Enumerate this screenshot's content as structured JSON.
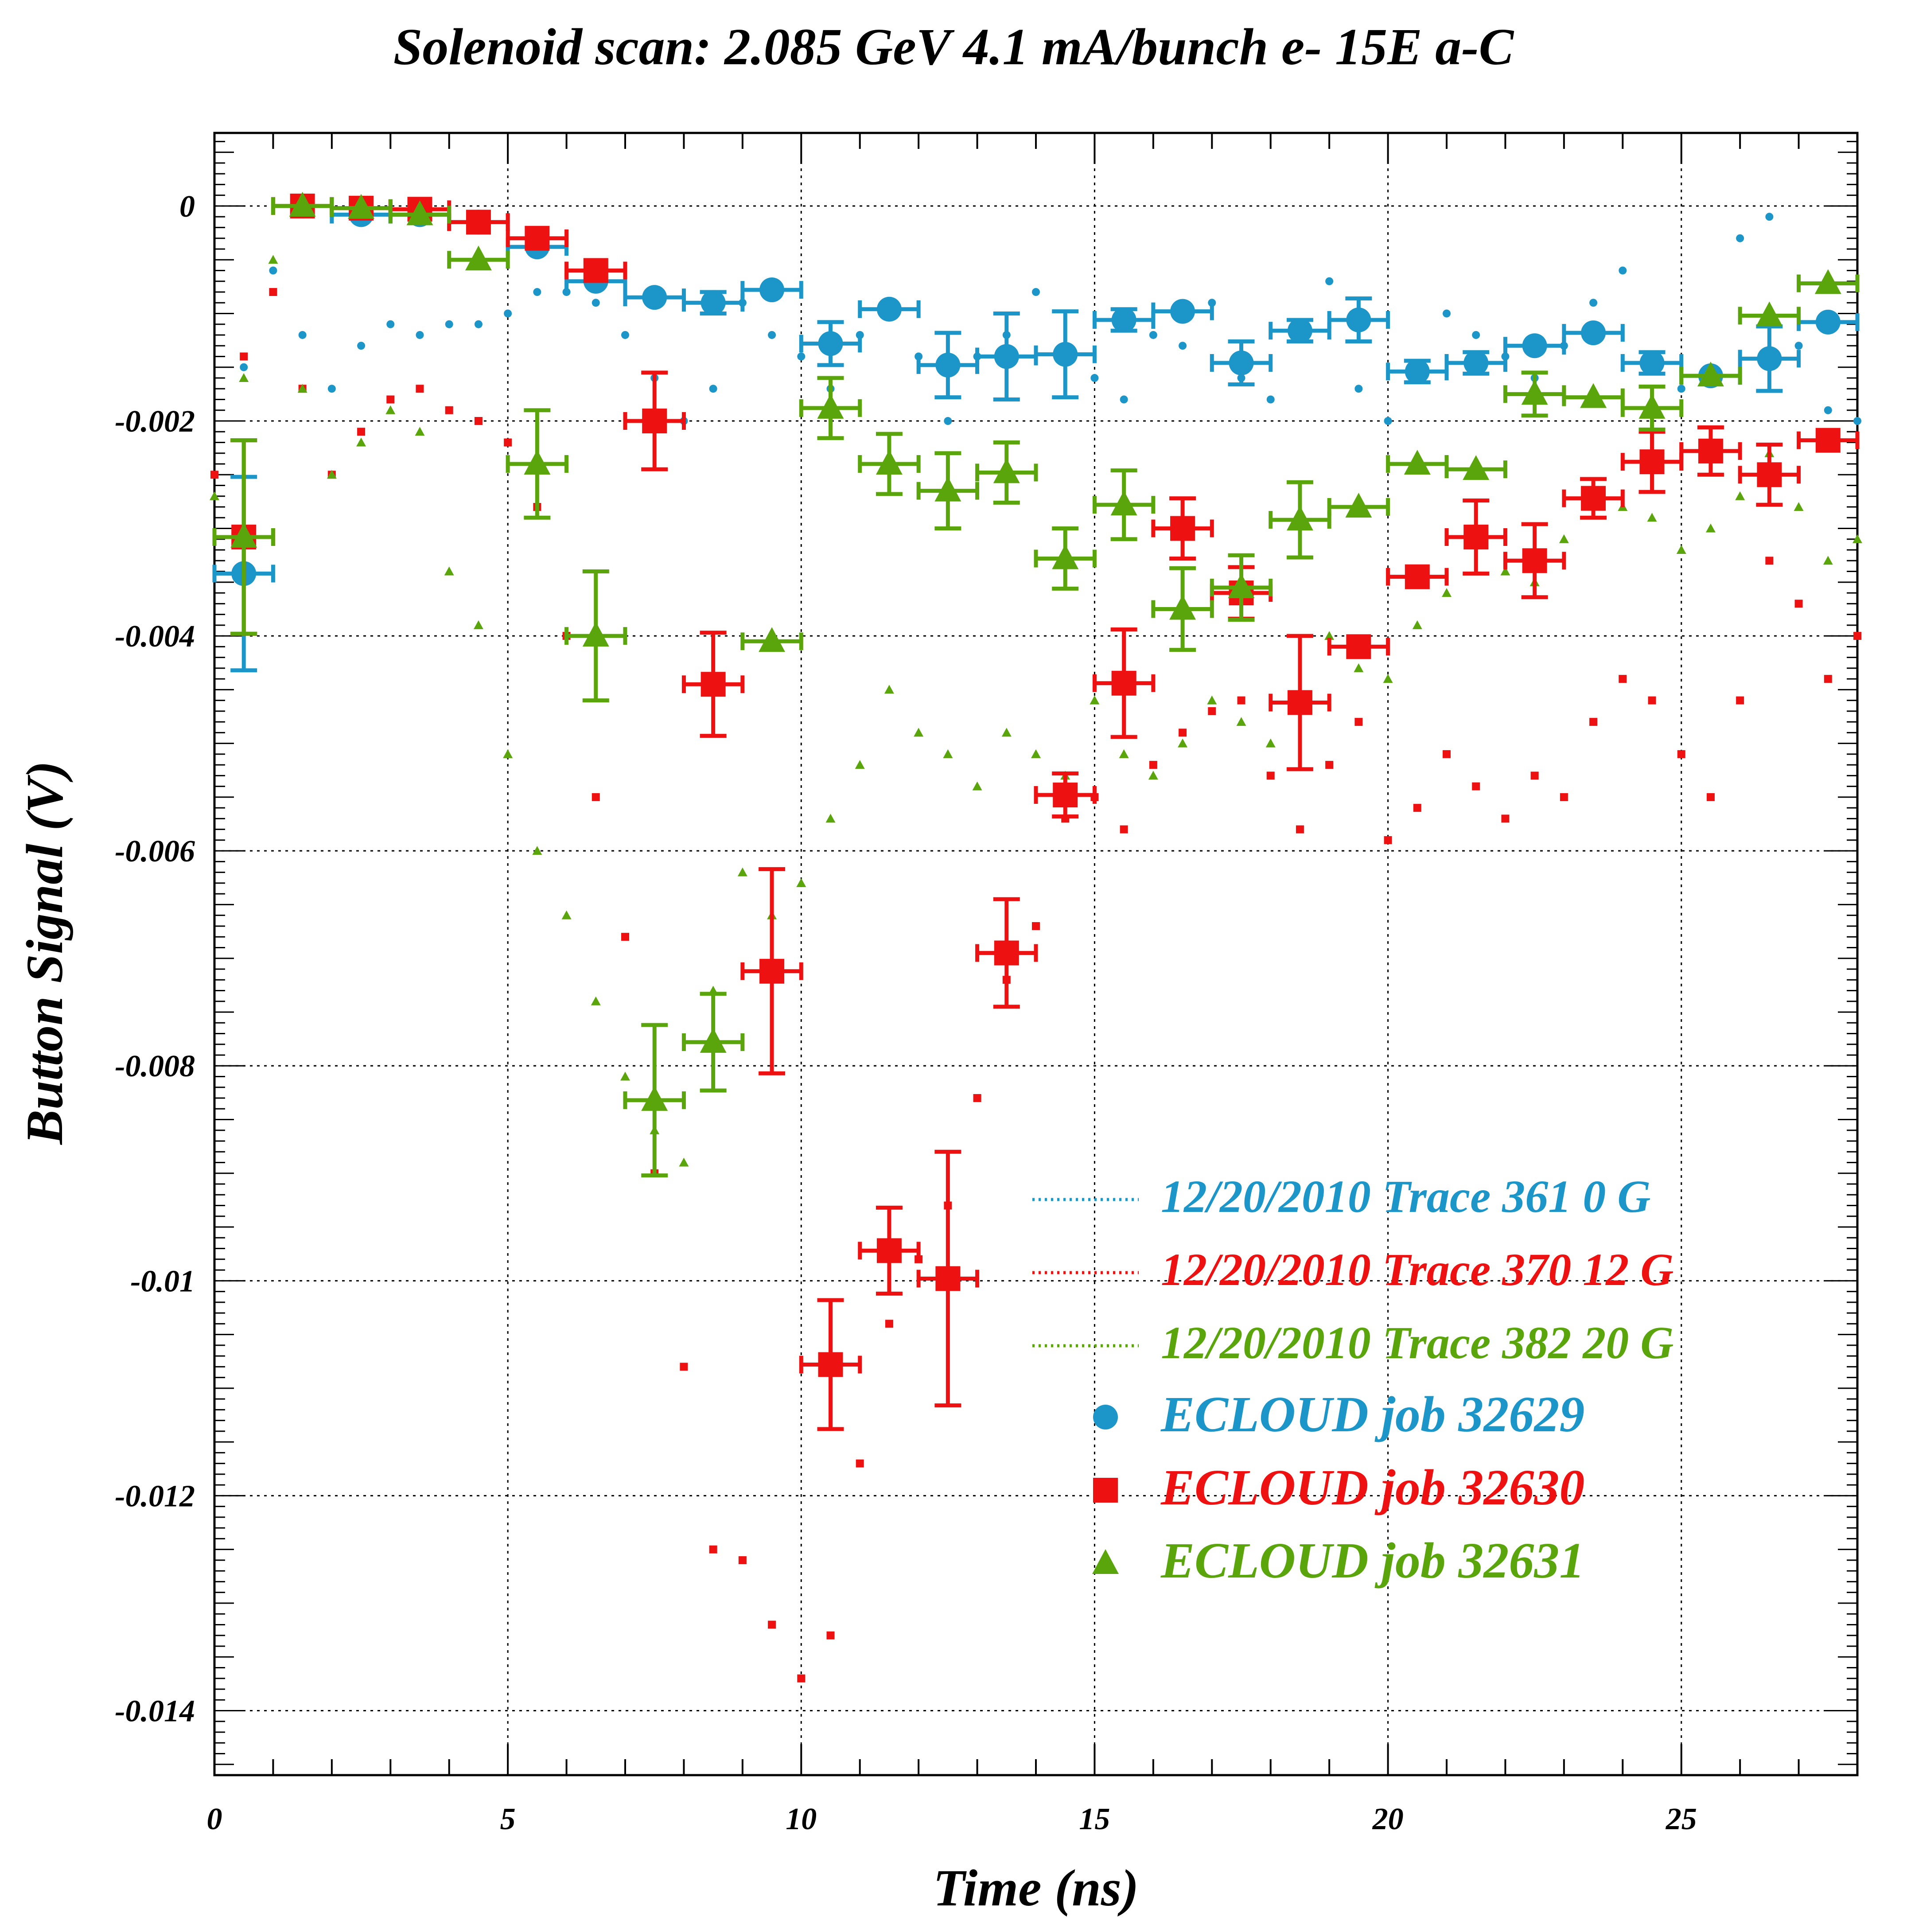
{
  "chart_data": {
    "type": "scatter",
    "title": "Solenoid scan: 2.085 GeV 4.1 mA/bunch e- 15E a-C",
    "xlabel": "Time (ns)",
    "ylabel": "Button Signal (V)",
    "xlim": [
      0,
      28
    ],
    "ylim": [
      -0.0146,
      0.00068
    ],
    "xticks": [
      0,
      5,
      10,
      15,
      20,
      25
    ],
    "xtick_labels": [
      "0",
      "5",
      "10",
      "15",
      "20",
      "25"
    ],
    "yticks": [
      0,
      -0.002,
      -0.004,
      -0.006,
      -0.008,
      -0.01,
      -0.012,
      -0.014
    ],
    "ytick_labels": [
      "0",
      "-0.002",
      "-0.004",
      "-0.006",
      "-0.008",
      "-0.01",
      "-0.012",
      "-0.014"
    ],
    "grid": true,
    "legend_position": "lower-right",
    "colors": {
      "blue": "#1c95c8",
      "red": "#ee1111",
      "green": "#5aa50c"
    },
    "traces": [
      {
        "name": "12/20/2010 Trace 361  0 G",
        "color": "#1c95c8",
        "x": [
          0.0,
          0.5,
          1.0,
          1.5,
          2.0,
          2.5,
          3.0,
          3.5,
          4.0,
          4.5,
          5.0,
          5.5,
          6.0,
          6.5,
          7.0,
          7.5,
          8.0,
          8.5,
          9.0,
          9.5,
          10.0,
          10.5,
          11.0,
          11.5,
          12.0,
          12.5,
          13.0,
          13.5,
          14.0,
          14.5,
          15.0,
          15.5,
          16.0,
          16.5,
          17.0,
          17.5,
          18.0,
          18.5,
          19.0,
          19.5,
          20.0,
          20.5,
          21.0,
          21.5,
          22.0,
          22.5,
          23.0,
          23.5,
          24.0,
          24.5,
          25.0,
          25.5,
          26.0,
          26.5,
          27.0,
          27.5,
          28.0
        ],
        "y": [
          -0.0025,
          -0.0015,
          -0.0006,
          -0.0012,
          -0.0017,
          -0.0013,
          -0.0011,
          -0.0012,
          -0.0011,
          -0.0011,
          -0.001,
          -0.0008,
          -0.0008,
          -0.0009,
          -0.0012,
          -0.0016,
          -0.002,
          -0.0017,
          -0.0009,
          -0.0012,
          -0.0014,
          -0.0017,
          -0.0012,
          -0.0009,
          -0.0014,
          -0.002,
          -0.0014,
          -0.0012,
          -0.0008,
          -0.0013,
          -0.0016,
          -0.0018,
          -0.0012,
          -0.0013,
          -0.0009,
          -0.0016,
          -0.0018,
          -0.0012,
          -0.0007,
          -0.0017,
          -0.002,
          -0.0015,
          -0.001,
          -0.0012,
          -0.0014,
          -0.0016,
          -0.0013,
          -0.0009,
          -0.0006,
          -0.0014,
          -0.0017,
          -0.0015,
          -0.0003,
          -0.0001,
          -0.0013,
          -0.0019,
          -0.002
        ]
      },
      {
        "name": "12/20/2010 Trace 370  12 G",
        "color": "#ee1111",
        "x": [
          0.0,
          0.5,
          1.0,
          1.5,
          2.0,
          2.5,
          3.0,
          3.5,
          4.0,
          4.5,
          5.0,
          5.5,
          6.0,
          6.5,
          7.0,
          7.5,
          8.0,
          8.5,
          9.0,
          9.5,
          10.0,
          10.5,
          11.0,
          11.5,
          12.0,
          12.5,
          13.0,
          13.5,
          14.0,
          14.5,
          15.0,
          15.5,
          16.0,
          16.5,
          17.0,
          17.5,
          18.0,
          18.5,
          19.0,
          19.5,
          20.0,
          20.5,
          21.0,
          21.5,
          22.0,
          22.5,
          23.0,
          23.5,
          24.0,
          24.5,
          25.0,
          25.5,
          26.0,
          26.5,
          27.0,
          27.5,
          28.0
        ],
        "y": [
          -0.0025,
          -0.0014,
          -0.0008,
          -0.0017,
          -0.0025,
          -0.0021,
          -0.0018,
          -0.0017,
          -0.0019,
          -0.002,
          -0.0022,
          -0.0028,
          -0.004,
          -0.0055,
          -0.0068,
          -0.009,
          -0.0108,
          -0.0125,
          -0.0126,
          -0.0132,
          -0.0137,
          -0.0133,
          -0.0117,
          -0.0104,
          -0.0098,
          -0.0093,
          -0.0083,
          -0.0072,
          -0.0067,
          -0.0057,
          -0.0055,
          -0.0058,
          -0.0052,
          -0.0049,
          -0.0047,
          -0.0046,
          -0.0053,
          -0.0058,
          -0.0052,
          -0.0048,
          -0.0059,
          -0.0056,
          -0.0051,
          -0.0054,
          -0.0057,
          -0.0053,
          -0.0055,
          -0.0048,
          -0.0044,
          -0.0046,
          -0.0051,
          -0.0055,
          -0.0046,
          -0.0033,
          -0.0037,
          -0.0044,
          -0.004
        ]
      },
      {
        "name": "12/20/2010 Trace 382  20 G",
        "color": "#5aa50c",
        "x": [
          0.0,
          0.5,
          1.0,
          1.5,
          2.0,
          2.5,
          3.0,
          3.5,
          4.0,
          4.5,
          5.0,
          5.5,
          6.0,
          6.5,
          7.0,
          7.5,
          8.0,
          8.5,
          9.0,
          9.5,
          10.0,
          10.5,
          11.0,
          11.5,
          12.0,
          12.5,
          13.0,
          13.5,
          14.0,
          14.5,
          15.0,
          15.5,
          16.0,
          16.5,
          17.0,
          17.5,
          18.0,
          18.5,
          19.0,
          19.5,
          20.0,
          20.5,
          21.0,
          21.5,
          22.0,
          22.5,
          23.0,
          23.5,
          24.0,
          24.5,
          25.0,
          25.5,
          26.0,
          26.5,
          27.0,
          27.5,
          28.0
        ],
        "y": [
          -0.0027,
          -0.0016,
          -0.0005,
          -0.0017,
          -0.0025,
          -0.0022,
          -0.0019,
          -0.0021,
          -0.0034,
          -0.0039,
          -0.0051,
          -0.006,
          -0.0066,
          -0.0074,
          -0.0081,
          -0.0086,
          -0.0089,
          -0.0073,
          -0.0062,
          -0.0066,
          -0.0063,
          -0.0057,
          -0.0052,
          -0.0045,
          -0.0049,
          -0.0051,
          -0.0054,
          -0.0049,
          -0.0051,
          -0.0053,
          -0.0046,
          -0.0051,
          -0.0053,
          -0.005,
          -0.0046,
          -0.0048,
          -0.005,
          -0.0046,
          -0.004,
          -0.0043,
          -0.0044,
          -0.0039,
          -0.0036,
          -0.0031,
          -0.0034,
          -0.0035,
          -0.0031,
          -0.0027,
          -0.0028,
          -0.0029,
          -0.0032,
          -0.003,
          -0.0027,
          -0.0023,
          -0.0028,
          -0.0033,
          -0.0031
        ]
      }
    ],
    "series": [
      {
        "name": "ECLOUD job 32629",
        "color": "#1c95c8",
        "marker": "circle",
        "x": [
          0.5,
          1.5,
          2.5,
          3.5,
          4.5,
          5.5,
          6.5,
          7.5,
          8.5,
          9.5,
          10.5,
          11.5,
          12.5,
          13.5,
          14.5,
          15.5,
          16.5,
          17.5,
          18.5,
          19.5,
          20.5,
          21.5,
          22.5,
          23.5,
          24.5,
          25.5,
          26.5,
          27.5
        ],
        "y": [
          -0.00342,
          0.0,
          -8e-05,
          -8e-05,
          -0.00015,
          -0.00038,
          -0.0007,
          -0.00085,
          -0.0009,
          -0.00078,
          -0.00128,
          -0.00096,
          -0.00148,
          -0.0014,
          -0.00138,
          -0.00106,
          -0.00098,
          -0.00146,
          -0.00116,
          -0.00106,
          -0.00154,
          -0.00146,
          -0.0013,
          -0.00118,
          -0.00146,
          -0.00158,
          -0.00142,
          -0.00108
        ],
        "yerr": [
          0.0009,
          0.0,
          0.0,
          0.0,
          0.0,
          0.0,
          0.0,
          0.0,
          0.0001,
          0.0,
          0.0002,
          0.0,
          0.0003,
          0.0004,
          0.0004,
          0.0001,
          0.0,
          0.0002,
          0.0001,
          0.0002,
          0.0001,
          0.0001,
          0.0,
          0.0,
          0.0001,
          0.0,
          0.0003,
          0.0
        ]
      },
      {
        "name": "ECLOUD job 32630",
        "color": "#ee1111",
        "marker": "square",
        "x": [
          0.5,
          1.5,
          2.5,
          3.5,
          4.5,
          5.5,
          6.5,
          7.5,
          8.5,
          9.5,
          10.5,
          11.5,
          12.5,
          13.5,
          14.5,
          15.5,
          16.5,
          17.5,
          18.5,
          19.5,
          20.5,
          21.5,
          22.5,
          23.5,
          24.5,
          25.5,
          26.5,
          27.5
        ],
        "y": [
          -0.00308,
          0.0,
          -2e-05,
          -3e-05,
          -0.00015,
          -0.0003,
          -0.0006,
          -0.002,
          -0.00445,
          -0.00712,
          -0.01078,
          -0.00972,
          -0.00998,
          -0.00695,
          -0.00548,
          -0.00444,
          -0.003,
          -0.0036,
          -0.00462,
          -0.0041,
          -0.00345,
          -0.00308,
          -0.0033,
          -0.00272,
          -0.00238,
          -0.00228,
          -0.0025,
          -0.00218
        ],
        "yerr": [
          0.0009,
          0.0,
          0.0,
          0.0,
          0.0,
          0.0,
          0.0,
          0.00045,
          0.00048,
          0.00095,
          0.0006,
          0.0004,
          0.00118,
          0.0005,
          0.0002,
          0.0005,
          0.00028,
          0.00024,
          0.00062,
          0.0,
          0.0,
          0.00034,
          0.00034,
          0.00018,
          0.00028,
          0.00022,
          0.00028,
          0.0
        ]
      },
      {
        "name": "ECLOUD job 32631",
        "color": "#5aa50c",
        "marker": "triangle",
        "x": [
          0.5,
          1.5,
          2.5,
          3.5,
          4.5,
          5.5,
          6.5,
          7.5,
          8.5,
          9.5,
          10.5,
          11.5,
          12.5,
          13.5,
          14.5,
          15.5,
          16.5,
          17.5,
          18.5,
          19.5,
          20.5,
          21.5,
          22.5,
          23.5,
          24.5,
          25.5,
          26.5,
          27.5
        ],
        "y": [
          -0.00308,
          0.0,
          -2e-05,
          -8e-05,
          -0.0005,
          -0.0024,
          -0.004,
          -0.00832,
          -0.00778,
          -0.00405,
          -0.00188,
          -0.0024,
          -0.00265,
          -0.00248,
          -0.00328,
          -0.00278,
          -0.00375,
          -0.00355,
          -0.00292,
          -0.0028,
          -0.0024,
          -0.00245,
          -0.00175,
          -0.00178,
          -0.00188,
          -0.00158,
          -0.00102,
          -0.00072
        ],
        "yerr": [
          0.0009,
          0.0,
          0.0,
          0.0,
          0.0,
          0.0005,
          0.0006,
          0.0007,
          0.00045,
          0.0,
          0.00028,
          0.00028,
          0.00035,
          0.00028,
          0.00028,
          0.00032,
          0.00038,
          0.0003,
          0.00035,
          0.0,
          0.0,
          0.0,
          0.0002,
          0.0,
          0.0002,
          0.0,
          0.0,
          0.0
        ]
      }
    ]
  }
}
